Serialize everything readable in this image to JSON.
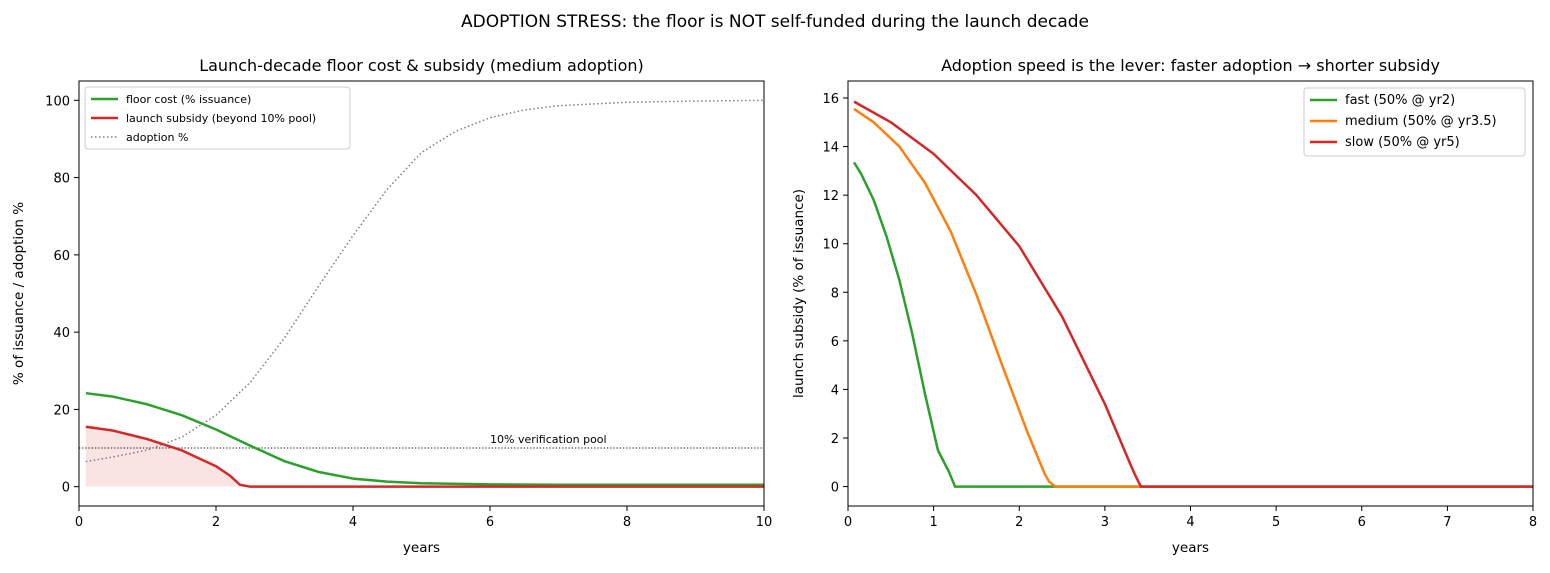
{
  "figure": {
    "suptitle": "ADOPTION STRESS: the floor is NOT self-funded during the launch decade"
  },
  "chart_data": [
    {
      "type": "line",
      "title": "Launch-decade floor cost & subsidy (medium adoption)",
      "xlabel": "years",
      "ylabel": "% of issuance / adoption %",
      "xlim": [
        0,
        10
      ],
      "ylim": [
        -5,
        105
      ],
      "xticks": [
        "0",
        "2",
        "4",
        "6",
        "8",
        "10"
      ],
      "yticks": [
        "0",
        "20",
        "40",
        "60",
        "80",
        "100"
      ],
      "grid": false,
      "legend_position": "top-left",
      "series": [
        {
          "name": "floor cost (% issuance)",
          "color": "#2ca02c",
          "style": "solid",
          "x": [
            0.1,
            0.5,
            1.0,
            1.5,
            2.0,
            2.5,
            3.0,
            3.5,
            4.0,
            4.5,
            5.0,
            6.0,
            7.0,
            8.0,
            10.0
          ],
          "y": [
            24.2,
            23.3,
            21.3,
            18.5,
            14.8,
            10.6,
            6.6,
            3.8,
            2.1,
            1.3,
            0.9,
            0.6,
            0.5,
            0.5,
            0.5
          ]
        },
        {
          "name": "launch subsidy (beyond 10% pool)",
          "color": "#d62728",
          "style": "solid",
          "fill_to_zero": true,
          "x": [
            0.1,
            0.5,
            1.0,
            1.5,
            2.0,
            2.2,
            2.35,
            2.5,
            3.0,
            4.0,
            6.0,
            8.0,
            10.0
          ],
          "y": [
            15.5,
            14.5,
            12.3,
            9.4,
            5.3,
            2.9,
            0.5,
            0,
            0,
            0,
            0,
            0,
            0
          ]
        },
        {
          "name": "adoption %",
          "color": "#7f7f7f",
          "style": "dotted",
          "x": [
            0.1,
            0.5,
            1.0,
            1.5,
            2.0,
            2.5,
            3.0,
            3.5,
            4.0,
            4.5,
            5.0,
            5.5,
            6.0,
            6.5,
            7.0,
            8.0,
            9.0,
            10.0
          ],
          "y": [
            6.5,
            7.7,
            9.5,
            12.8,
            18.5,
            27.0,
            38.5,
            52.0,
            65.0,
            77.0,
            86.5,
            92.0,
            95.5,
            97.5,
            98.6,
            99.5,
            99.8,
            100.0
          ]
        }
      ],
      "reference_line": {
        "y": 10,
        "label": "10% verification pool",
        "color": "#000000"
      }
    },
    {
      "type": "line",
      "title": "Adoption speed is the lever: faster adoption → shorter subsidy",
      "xlabel": "years",
      "ylabel": "launch subsidy (% of issuance)",
      "xlim": [
        0,
        8
      ],
      "ylim": [
        -0.8,
        16.7
      ],
      "xticks": [
        "0",
        "1",
        "2",
        "3",
        "4",
        "5",
        "6",
        "7",
        "8"
      ],
      "yticks": [
        "0",
        "2",
        "4",
        "6",
        "8",
        "10",
        "12",
        "14",
        "16"
      ],
      "grid": false,
      "legend_position": "top-right",
      "series": [
        {
          "name": "fast (50% @ yr2)",
          "color": "#2ca02c",
          "x": [
            0.07,
            0.15,
            0.3,
            0.45,
            0.6,
            0.75,
            0.9,
            1.05,
            1.18,
            1.25,
            1.4,
            2.0,
            4.0,
            8.0
          ],
          "y": [
            13.35,
            12.9,
            11.8,
            10.3,
            8.5,
            6.3,
            3.8,
            1.5,
            0.6,
            0,
            0,
            0,
            0,
            0
          ]
        },
        {
          "name": "medium (50% @ yr3.5)",
          "color": "#ff7f0e",
          "x": [
            0.07,
            0.3,
            0.6,
            0.9,
            1.2,
            1.5,
            1.8,
            2.1,
            2.3,
            2.35,
            2.42,
            3.0,
            4.0,
            8.0
          ],
          "y": [
            15.55,
            15.0,
            14.0,
            12.5,
            10.5,
            7.9,
            5.0,
            2.2,
            0.5,
            0.2,
            0,
            0,
            0,
            0
          ]
        },
        {
          "name": "slow (50% @ yr5)",
          "color": "#d62728",
          "x": [
            0.07,
            0.5,
            1.0,
            1.5,
            2.0,
            2.5,
            3.0,
            3.3,
            3.35,
            3.42,
            4.0,
            8.0
          ],
          "y": [
            15.85,
            15.0,
            13.7,
            12.0,
            9.9,
            7.0,
            3.4,
            0.9,
            0.5,
            0,
            0,
            0
          ]
        }
      ]
    }
  ]
}
